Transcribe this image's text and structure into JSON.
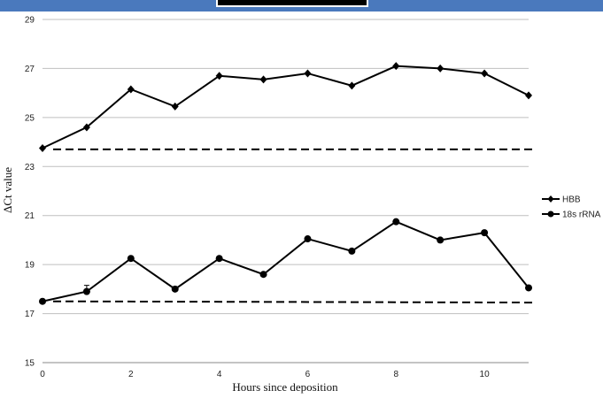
{
  "chart_data": {
    "type": "line",
    "xlabel": "Hours since deposition",
    "ylabel": "ΔCt  value",
    "xlim": [
      0,
      11
    ],
    "ylim": [
      15,
      29
    ],
    "x_ticks": [
      0,
      2,
      4,
      6,
      8,
      10
    ],
    "y_ticks": [
      15,
      17,
      19,
      21,
      23,
      25,
      27,
      29
    ],
    "grid": "horizontal",
    "legend_position": "right",
    "x": [
      0,
      1,
      2,
      3,
      4,
      5,
      6,
      7,
      8,
      9,
      10,
      11
    ],
    "series": [
      {
        "name": "HBB",
        "marker": "diamond",
        "color": "#000000",
        "values": [
          23.75,
          24.6,
          26.15,
          25.45,
          26.7,
          26.55,
          26.8,
          26.3,
          27.1,
          27.0,
          26.8,
          25.9
        ]
      },
      {
        "name": "18s rRNA",
        "marker": "circle",
        "color": "#000000",
        "values": [
          17.5,
          17.9,
          19.25,
          18.0,
          19.25,
          18.6,
          20.05,
          19.55,
          20.75,
          20.0,
          20.3,
          18.05
        ]
      }
    ],
    "reference_lines": [
      {
        "style": "dashed",
        "from": [
          0,
          23.7
        ],
        "to": [
          11,
          23.7
        ]
      },
      {
        "style": "dashed",
        "from": [
          0,
          17.5
        ],
        "to": [
          11,
          17.45
        ]
      }
    ]
  },
  "colors": {
    "frame_bar": "#4a79bd",
    "gridline": "#bfbfbf",
    "series": "#000000"
  }
}
